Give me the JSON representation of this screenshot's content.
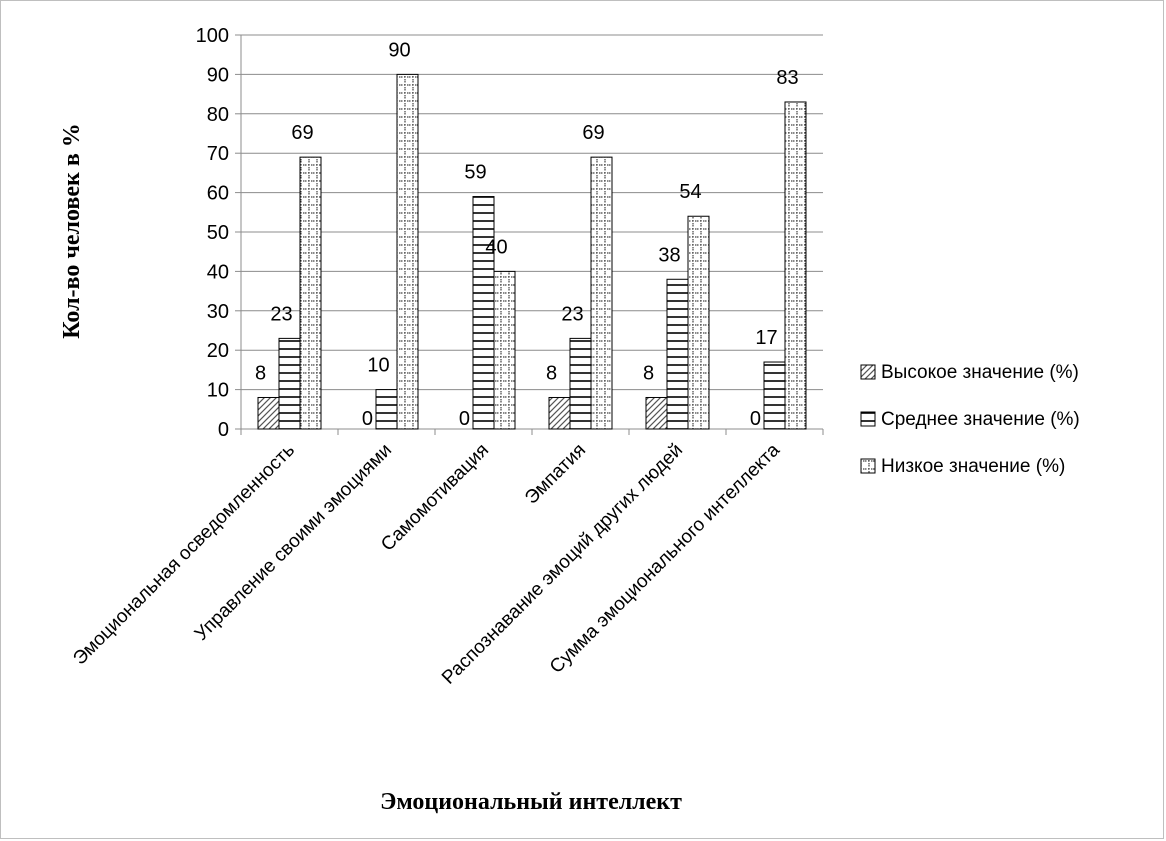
{
  "chart_data": {
    "type": "bar",
    "title": "",
    "xlabel": "Эмоциональный интеллект",
    "ylabel": "Кол-во человек в %",
    "ylim": [
      0,
      100
    ],
    "ytick_step": 10,
    "grid": true,
    "legend_position": "right",
    "categories": [
      "Эмоциональная осведомленность",
      "Управление своими эмоциями",
      "Самомотивация",
      "Эмпатия",
      "Распознавание эмоций других людей",
      "Сумма эмоционального интеллекта"
    ],
    "series": [
      {
        "name": "Высокое значение (%)",
        "values": [
          8,
          0,
          0,
          8,
          8,
          0
        ],
        "pattern": "diagonal"
      },
      {
        "name": "Среднее значение (%)",
        "values": [
          23,
          10,
          59,
          23,
          38,
          17
        ],
        "pattern": "horizontal"
      },
      {
        "name": "Низкое значение (%)",
        "values": [
          69,
          90,
          40,
          69,
          54,
          83
        ],
        "pattern": "dotted"
      }
    ]
  }
}
